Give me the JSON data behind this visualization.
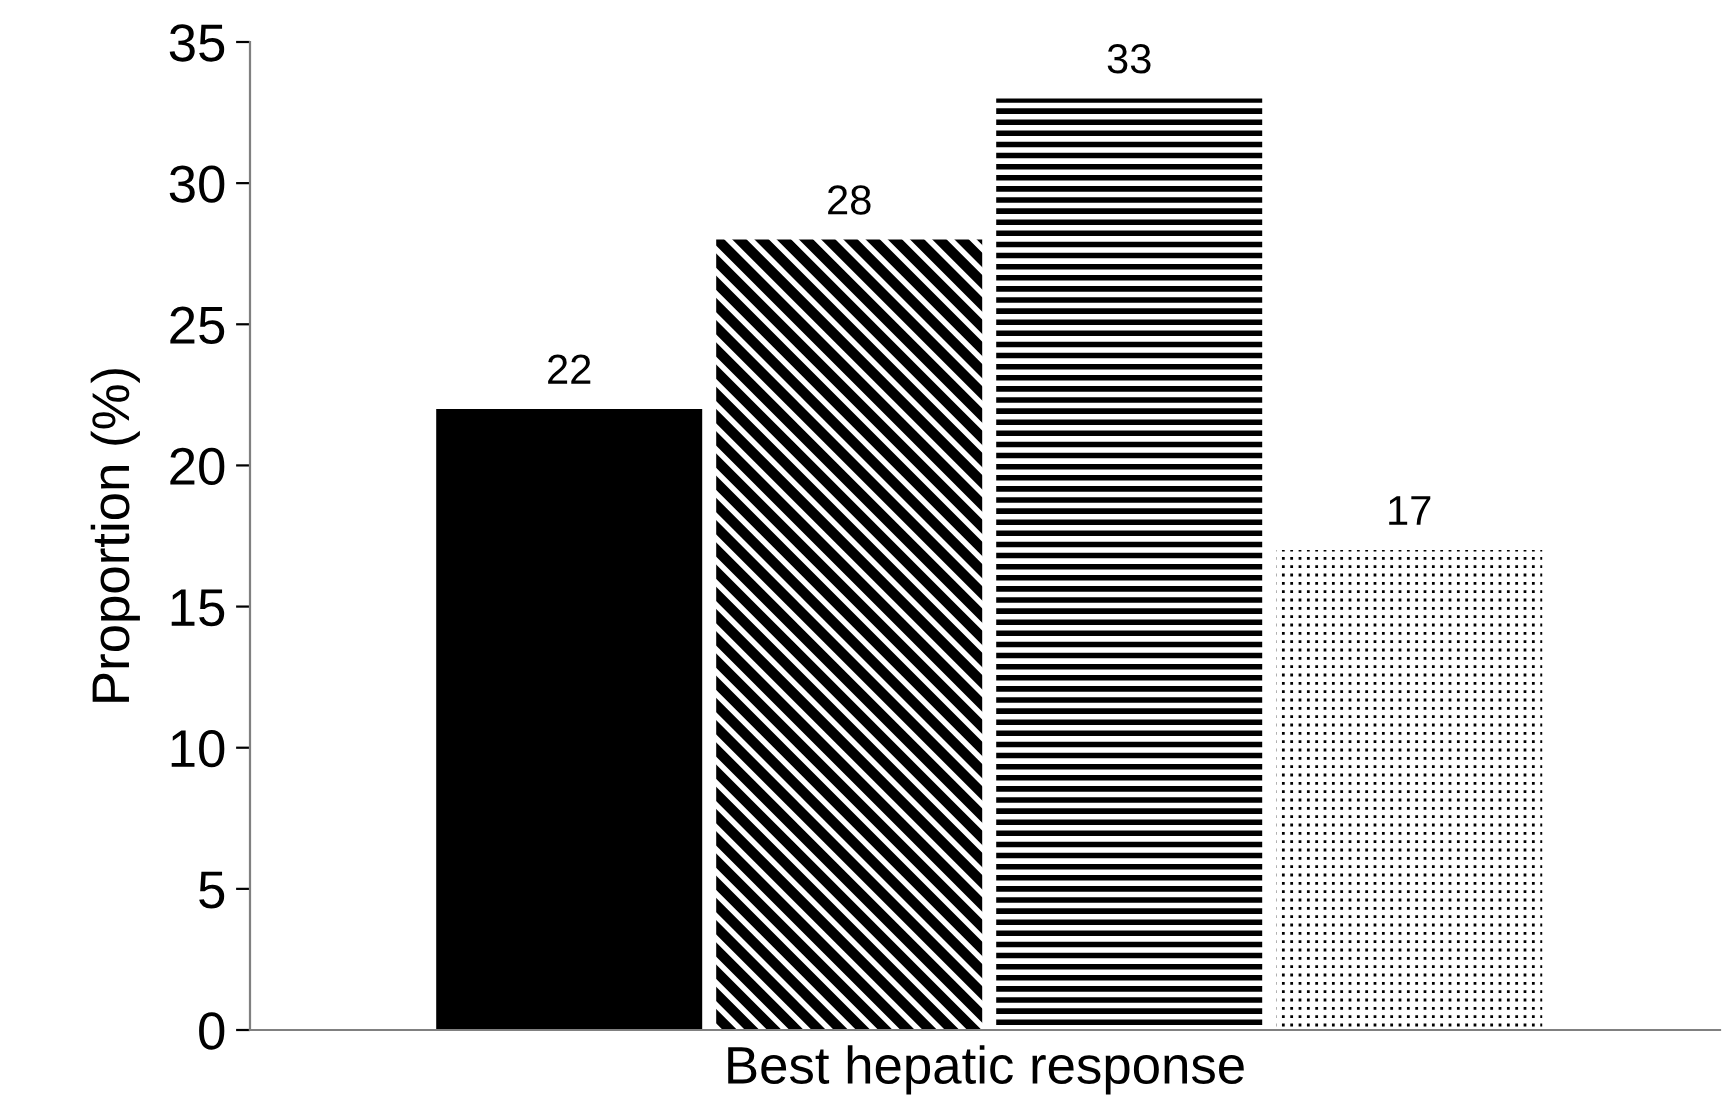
{
  "chart_data": {
    "type": "bar",
    "xlabel": "Best hepatic response",
    "ylabel": "Proportion (%)",
    "categories": [
      null,
      null,
      null,
      null
    ],
    "values": [
      22,
      28,
      33,
      17
    ],
    "colors": [
      "#000000",
      "#000000",
      "#000000",
      "#000000"
    ],
    "ylim": [
      0,
      35
    ],
    "yticks": [
      0,
      5,
      10,
      15,
      20,
      25,
      30,
      35
    ],
    "data_labels": true,
    "grid": false,
    "legend": false
  }
}
